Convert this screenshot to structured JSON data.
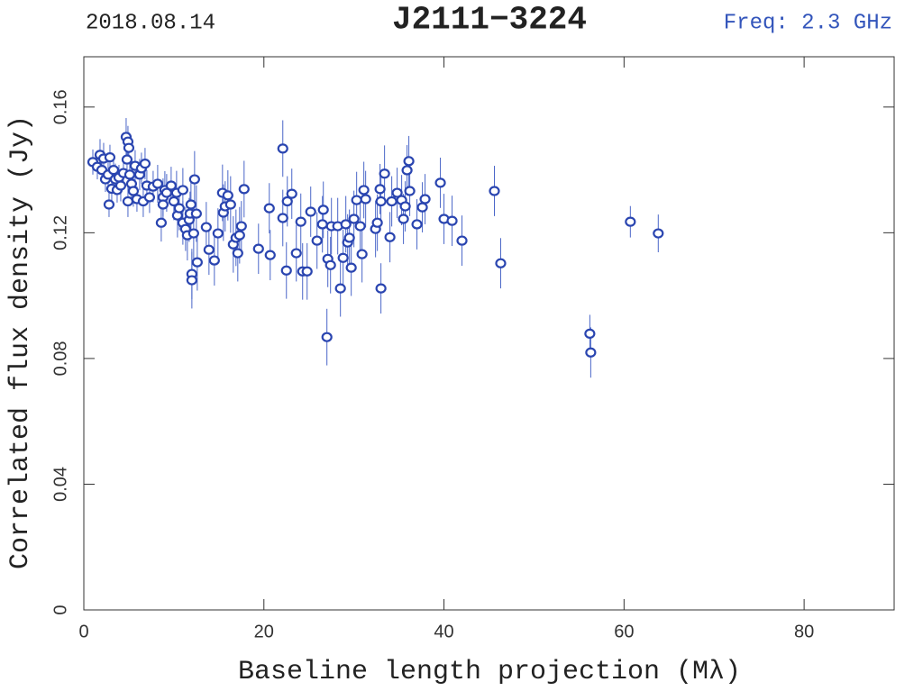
{
  "chart_data": {
    "type": "scatter",
    "title": "J2111−3224",
    "date": "2018.08.14",
    "subtitle": "Freq: 2.3 GHz",
    "xlabel": "Baseline length projection (Mλ)",
    "ylabel": "Correlated flux density (Jy)",
    "xlim": [
      0,
      90
    ],
    "ylim": [
      0,
      0.176
    ],
    "xticks": [
      0,
      20,
      40,
      60,
      80
    ],
    "yticks": [
      0,
      0.04,
      0.08,
      0.12,
      0.16
    ],
    "color": "#2a45b0",
    "series": [
      {
        "x": [
          1.0,
          1.5,
          1.8,
          2.0,
          2.2,
          2.4,
          2.7,
          2.8,
          2.9,
          3.1,
          3.3,
          3.5,
          3.7,
          3.9,
          4.1,
          4.4,
          4.7,
          4.8,
          4.9,
          5.0,
          4.9,
          5.1,
          5.3,
          5.5,
          5.7,
          5.9,
          6.2,
          6.4,
          6.6,
          6.8,
          7.0,
          7.3,
          7.7,
          8.2,
          8.6,
          8.8,
          8.8,
          9.0,
          9.2,
          9.7,
          10.0,
          10.3,
          10.4,
          10.6,
          11.0,
          11.0,
          11.3,
          11.5,
          11.7,
          11.8,
          11.9,
          12.0,
          12.0,
          12.2,
          12.3,
          12.5,
          12.6,
          13.6,
          13.9,
          14.5,
          14.9,
          15.4,
          15.5,
          15.7,
          16.0,
          16.3,
          16.6,
          16.9,
          17.1,
          17.3,
          17.5,
          17.8,
          19.4,
          20.6,
          20.7,
          22.1,
          22.1,
          22.5,
          22.6,
          23.1,
          23.6,
          24.1,
          24.3,
          24.8,
          25.2,
          25.9,
          26.5,
          26.6,
          27.0,
          27.1,
          27.4,
          27.5,
          28.2,
          28.5,
          28.8,
          29.1,
          29.3,
          29.5,
          29.7,
          30.0,
          30.3,
          30.7,
          30.9,
          31.1,
          31.3,
          32.4,
          32.6,
          32.9,
          33.0,
          33.0,
          33.4,
          34.0,
          34.2,
          34.8,
          35.3,
          35.5,
          35.7,
          35.9,
          36.1,
          36.2,
          37.0,
          37.6,
          37.9,
          39.6,
          40.0,
          40.9,
          42.0,
          45.6,
          46.3,
          56.2,
          56.3,
          60.7,
          63.8
        ],
        "values": [
          0.1425,
          0.141,
          0.1448,
          0.14,
          0.1436,
          0.137,
          0.1385,
          0.129,
          0.144,
          0.134,
          0.14,
          0.137,
          0.1336,
          0.1376,
          0.135,
          0.139,
          0.1505,
          0.1433,
          0.149,
          0.147,
          0.13,
          0.1385,
          0.1356,
          0.1333,
          0.1413,
          0.1307,
          0.1385,
          0.1405,
          0.13,
          0.142,
          0.135,
          0.1313,
          0.1347,
          0.1356,
          0.1232,
          0.1313,
          0.129,
          0.1336,
          0.1327,
          0.135,
          0.13,
          0.1327,
          0.1255,
          0.1278,
          0.1336,
          0.1232,
          0.1212,
          0.1192,
          0.1241,
          0.1261,
          0.129,
          0.1069,
          0.1049,
          0.1198,
          0.137,
          0.1261,
          0.1106,
          0.1218,
          0.1146,
          0.1112,
          0.1198,
          0.1327,
          0.1264,
          0.1284,
          0.1319,
          0.129,
          0.1163,
          0.1184,
          0.1135,
          0.1192,
          0.1221,
          0.1339,
          0.1149,
          0.1278,
          0.1129,
          0.1468,
          0.1247,
          0.108,
          0.13,
          0.1324,
          0.1135,
          0.1235,
          0.1077,
          0.1077,
          0.1267,
          0.1175,
          0.1227,
          0.1273,
          0.0868,
          0.1117,
          0.1097,
          0.1221,
          0.1221,
          0.1023,
          0.112,
          0.1227,
          0.1169,
          0.1184,
          0.1089,
          0.1244,
          0.1304,
          0.1221,
          0.1132,
          0.1336,
          0.1307,
          0.1212,
          0.1232,
          0.1339,
          0.1023,
          0.13,
          0.1388,
          0.1186,
          0.13,
          0.1327,
          0.1304,
          0.1244,
          0.1284,
          0.1399,
          0.1428,
          0.1333,
          0.1227,
          0.1281,
          0.1307,
          0.1359,
          0.1244,
          0.1238,
          0.1175,
          0.1333,
          0.1103,
          0.0879,
          0.0819,
          0.1235,
          0.1198
        ],
        "errors": [
          0.004,
          0.004,
          0.005,
          0.004,
          0.005,
          0.004,
          0.005,
          0.004,
          0.004,
          0.004,
          0.004,
          0.005,
          0.004,
          0.004,
          0.005,
          0.004,
          0.006,
          0.005,
          0.005,
          0.005,
          0.005,
          0.005,
          0.005,
          0.005,
          0.005,
          0.004,
          0.005,
          0.005,
          0.005,
          0.005,
          0.005,
          0.005,
          0.005,
          0.006,
          0.006,
          0.006,
          0.006,
          0.006,
          0.006,
          0.006,
          0.006,
          0.007,
          0.007,
          0.007,
          0.007,
          0.007,
          0.007,
          0.008,
          0.007,
          0.007,
          0.008,
          0.008,
          0.009,
          0.009,
          0.009,
          0.009,
          0.009,
          0.008,
          0.008,
          0.008,
          0.008,
          0.009,
          0.009,
          0.008,
          0.008,
          0.009,
          0.009,
          0.009,
          0.009,
          0.009,
          0.008,
          0.009,
          0.008,
          0.008,
          0.008,
          0.009,
          0.009,
          0.009,
          0.008,
          0.008,
          0.009,
          0.009,
          0.009,
          0.009,
          0.008,
          0.009,
          0.009,
          0.009,
          0.009,
          0.009,
          0.009,
          0.009,
          0.009,
          0.009,
          0.009,
          0.009,
          0.009,
          0.009,
          0.009,
          0.009,
          0.009,
          0.009,
          0.009,
          0.009,
          0.009,
          0.009,
          0.009,
          0.008,
          0.008,
          0.008,
          0.009,
          0.008,
          0.008,
          0.008,
          0.008,
          0.008,
          0.008,
          0.008,
          0.008,
          0.008,
          0.008,
          0.008,
          0.008,
          0.008,
          0.008,
          0.008,
          0.008,
          0.008,
          0.008,
          0.006,
          0.008,
          0.005,
          0.006
        ]
      }
    ]
  }
}
